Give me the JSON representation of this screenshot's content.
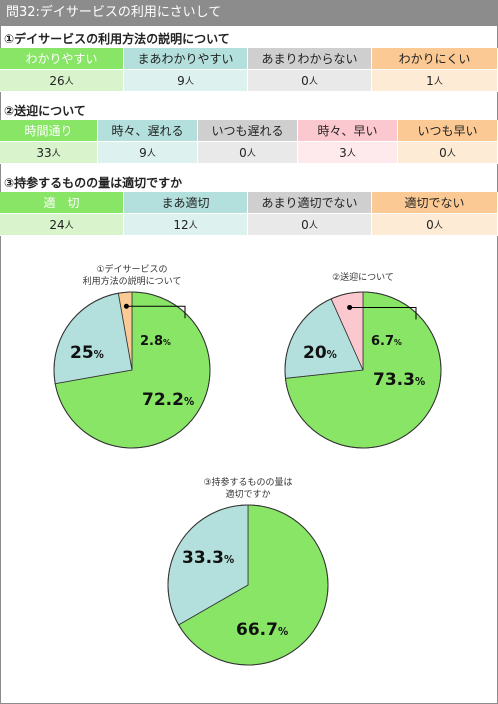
{
  "header": {
    "title": "問32:デイサービスの利用にさいして"
  },
  "unit": "人",
  "colors": {
    "green": "#88e566",
    "teal": "#b3e0dc",
    "gray": "#cfcfcf",
    "pink": "#fcc8cf",
    "orange": "#fbc994",
    "light_green": "#d9f4cc",
    "light_teal": "#ddf1ef",
    "light_gray": "#e9e9e9",
    "light_pink": "#feeaed",
    "light_orange": "#fdebd6"
  },
  "sections": [
    {
      "heading": "①デイサービスの利用方法の説明について",
      "columns": [
        "わかりやすい",
        "まあわかりやすい",
        "あまりわからない",
        "わかりにくい"
      ],
      "values": [
        26,
        9,
        0,
        1
      ]
    },
    {
      "heading": "②送迎について",
      "columns": [
        "時間通り",
        "時々、遅れる",
        "いつも遅れる",
        "時々、早い",
        "いつも早い"
      ],
      "values": [
        33,
        9,
        0,
        3,
        0
      ]
    },
    {
      "heading": "③持参するものの量は適切ですか",
      "columns": [
        "適　切",
        "まあ適切",
        "あまり適切でない",
        "適切でない"
      ],
      "values": [
        24,
        12,
        0,
        0
      ]
    }
  ],
  "chart_data": [
    {
      "type": "pie",
      "title": [
        "①デイサービスの",
        "利用方法の説明について"
      ],
      "slices": [
        {
          "value": 72.2,
          "label": "72.2",
          "color": "green"
        },
        {
          "value": 25,
          "label": "25",
          "color": "teal"
        },
        {
          "value": 2.8,
          "label": "2.8",
          "color": "orange"
        }
      ]
    },
    {
      "type": "pie",
      "title": [
        "②送迎について"
      ],
      "slices": [
        {
          "value": 73.3,
          "label": "73.3",
          "color": "green"
        },
        {
          "value": 20,
          "label": "20",
          "color": "teal"
        },
        {
          "value": 6.7,
          "label": "6.7",
          "color": "pink"
        }
      ]
    },
    {
      "type": "pie",
      "title": [
        "③持参するものの量は",
        "適切ですか"
      ],
      "slices": [
        {
          "value": 66.7,
          "label": "66.7",
          "color": "green"
        },
        {
          "value": 33.3,
          "label": "33.3",
          "color": "teal"
        }
      ]
    }
  ],
  "percent_sign": "%"
}
